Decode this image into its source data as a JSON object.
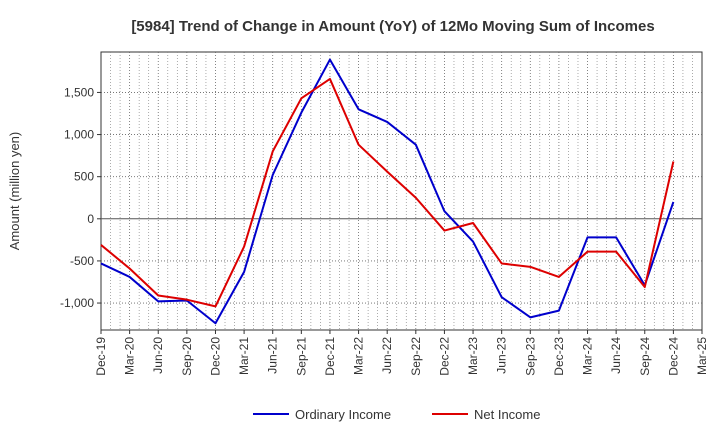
{
  "chart_data": {
    "type": "line",
    "title": "[5984]  Trend of Change in Amount (YoY) of 12Mo Moving Sum of Incomes",
    "xlabel": "",
    "ylabel": "Amount (million yen)",
    "categories": [
      "Dec-19",
      "Mar-20",
      "Jun-20",
      "Sep-20",
      "Dec-20",
      "Mar-21",
      "Jun-21",
      "Sep-21",
      "Dec-21",
      "Mar-22",
      "Jun-22",
      "Sep-22",
      "Dec-22",
      "Mar-23",
      "Jun-23",
      "Sep-23",
      "Dec-23",
      "Mar-24",
      "Jun-24",
      "Sep-24",
      "Dec-24",
      "Mar-25"
    ],
    "ylim": [
      -1320,
      1980
    ],
    "yticks": [
      -1000,
      -500,
      0,
      500,
      1000,
      1500
    ],
    "ytick_labels": [
      "-1,000",
      "-500",
      "0",
      "500",
      "1,000",
      "1,500"
    ],
    "grid": true,
    "legend_position": "bottom",
    "series": [
      {
        "name": "Ordinary Income",
        "color": "#0000cc",
        "values": [
          -530,
          -690,
          -980,
          -970,
          -1240,
          -630,
          520,
          1260,
          1890,
          1300,
          1150,
          880,
          90,
          -270,
          -930,
          -1170,
          -1090,
          -220,
          -220,
          -790,
          200,
          null
        ]
      },
      {
        "name": "Net Income",
        "color": "#dd0000",
        "values": [
          -310,
          -590,
          -910,
          -960,
          -1040,
          -330,
          800,
          1430,
          1660,
          880,
          560,
          250,
          -140,
          -50,
          -530,
          -570,
          -690,
          -390,
          -390,
          -810,
          680,
          null
        ]
      }
    ]
  }
}
